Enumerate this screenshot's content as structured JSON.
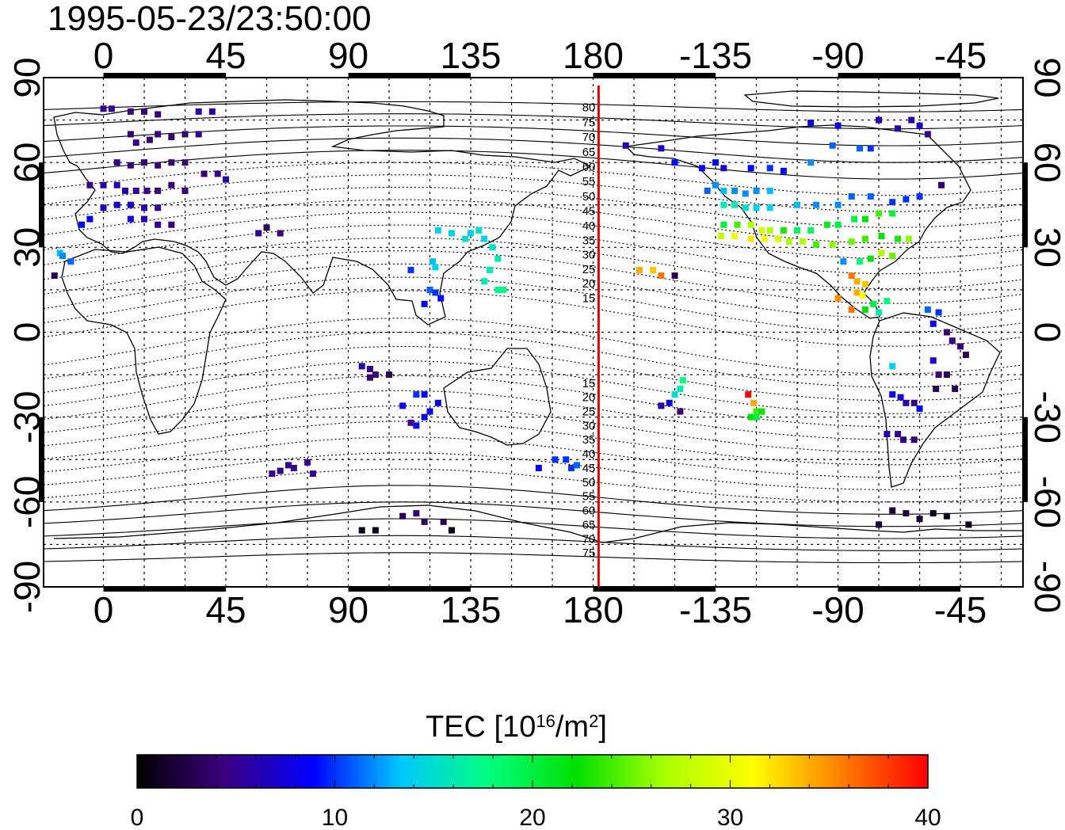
{
  "title": "1995-05-23/23:50:00",
  "colors": {
    "marker_line": "#e00000",
    "colormap": [
      "#000000",
      "#3c0080",
      "#0000ff",
      "#00c8ff",
      "#00ff80",
      "#00e000",
      "#a8ff00",
      "#ffff00",
      "#ff8000",
      "#ff0000"
    ]
  },
  "map": {
    "lon_ticks_top": [
      "0",
      "45",
      "90",
      "135",
      "180",
      "-135",
      "-90",
      "-45"
    ],
    "lon_ticks_bottom": [
      "0",
      "45",
      "90",
      "135",
      "180",
      "-135",
      "-90",
      "-45"
    ],
    "lat_ticks_left": [
      "90",
      "60",
      "30",
      "0",
      "-30",
      "-60",
      "-90"
    ],
    "lat_ticks_right": [
      "90",
      "60",
      "30",
      "0",
      "-30",
      "-60",
      "-90"
    ],
    "lon_range": [
      -22,
      338
    ],
    "lat_range": [
      -90,
      90
    ],
    "marker_longitude": 182,
    "grid": true,
    "magnetic_lat_labels_north": [
      "80",
      "75",
      "70",
      "65",
      "60",
      "55",
      "50",
      "45",
      "40",
      "35",
      "30",
      "25",
      "20",
      "15"
    ],
    "magnetic_lat_labels_south": [
      "15",
      "20",
      "25",
      "30",
      "35",
      "40",
      "45",
      "50",
      "55",
      "60",
      "65",
      "70",
      "75"
    ]
  },
  "colorbar": {
    "title_prefix": "TEC  [10",
    "title_sup1": "16",
    "title_mid": "/m",
    "title_sup2": "2",
    "title_suffix": "]",
    "ticks": [
      "0",
      "10",
      "20",
      "30",
      "40"
    ],
    "range": [
      0,
      40
    ]
  },
  "chart_data": {
    "type": "scatter",
    "title": "1995-05-23/23:50:00",
    "xlabel": "",
    "ylabel": "",
    "colorbar_label": "TEC [10^16/m^2]",
    "xlim": [
      -22,
      338
    ],
    "ylim": [
      -90,
      90
    ],
    "clim": [
      0,
      40
    ],
    "points": [
      [
        0,
        79,
        5
      ],
      [
        3,
        79,
        5
      ],
      [
        10,
        78,
        4
      ],
      [
        15,
        78,
        4
      ],
      [
        20,
        77,
        4
      ],
      [
        35,
        78,
        6
      ],
      [
        40,
        78,
        6
      ],
      [
        10,
        70,
        4
      ],
      [
        12,
        67,
        5
      ],
      [
        17,
        68,
        4
      ],
      [
        20,
        70,
        4
      ],
      [
        25,
        69,
        4
      ],
      [
        30,
        70,
        4
      ],
      [
        35,
        70,
        5
      ],
      [
        5,
        60,
        5
      ],
      [
        10,
        59,
        4
      ],
      [
        15,
        60,
        4
      ],
      [
        20,
        59,
        4
      ],
      [
        25,
        60,
        4
      ],
      [
        30,
        60,
        4
      ],
      [
        37,
        56,
        4
      ],
      [
        42,
        56,
        5
      ],
      [
        45,
        54,
        6
      ],
      [
        -5,
        52,
        5
      ],
      [
        0,
        52,
        6
      ],
      [
        5,
        52,
        6
      ],
      [
        8,
        50,
        6
      ],
      [
        12,
        50,
        5
      ],
      [
        16,
        50,
        5
      ],
      [
        20,
        50,
        4
      ],
      [
        25,
        52,
        4
      ],
      [
        30,
        50,
        4
      ],
      [
        5,
        45,
        7
      ],
      [
        10,
        45,
        7
      ],
      [
        15,
        44,
        6
      ],
      [
        20,
        44,
        5
      ],
      [
        0,
        44,
        7
      ],
      [
        -5,
        40,
        9
      ],
      [
        -8,
        38,
        9
      ],
      [
        10,
        40,
        8
      ],
      [
        15,
        40,
        6
      ],
      [
        20,
        38,
        5
      ],
      [
        25,
        38,
        4
      ],
      [
        -16,
        28,
        13
      ],
      [
        -15,
        27,
        12
      ],
      [
        -12,
        25,
        11
      ],
      [
        -18,
        20,
        3
      ],
      [
        60,
        37,
        3
      ],
      [
        65,
        35,
        4
      ],
      [
        57,
        35,
        5
      ],
      [
        123,
        36,
        14
      ],
      [
        128,
        35,
        14
      ],
      [
        133,
        33,
        15
      ],
      [
        135,
        35,
        14
      ],
      [
        138,
        36,
        15
      ],
      [
        140,
        33,
        14
      ],
      [
        143,
        30,
        15
      ],
      [
        145,
        26,
        16
      ],
      [
        142,
        22,
        16
      ],
      [
        140,
        18,
        16
      ],
      [
        145,
        15,
        17
      ],
      [
        147,
        15,
        18
      ],
      [
        121,
        25,
        13
      ],
      [
        122,
        23,
        14
      ],
      [
        120,
        15,
        11
      ],
      [
        122,
        14,
        10
      ],
      [
        124,
        12,
        9
      ],
      [
        118,
        10,
        9
      ],
      [
        113,
        22,
        10
      ],
      [
        95,
        -12,
        6
      ],
      [
        98,
        -13,
        5
      ],
      [
        100,
        -15,
        4
      ],
      [
        105,
        -15,
        3
      ],
      [
        98,
        -16,
        4
      ],
      [
        115,
        -22,
        10
      ],
      [
        118,
        -22,
        9
      ],
      [
        120,
        -28,
        8
      ],
      [
        123,
        -25,
        8
      ],
      [
        118,
        -30,
        8
      ],
      [
        110,
        -26,
        8
      ],
      [
        115,
        -33,
        9
      ],
      [
        113,
        -32,
        5
      ],
      [
        160,
        -48,
        9
      ],
      [
        166,
        -45,
        10
      ],
      [
        170,
        -45,
        10
      ],
      [
        172,
        -48,
        10
      ],
      [
        174,
        -47,
        11
      ],
      [
        68,
        -47,
        5
      ],
      [
        70,
        -48,
        5
      ],
      [
        75,
        -46,
        5
      ],
      [
        77,
        -50,
        5
      ],
      [
        65,
        -49,
        5
      ],
      [
        62,
        -50,
        5
      ],
      [
        110,
        -65,
        3
      ],
      [
        115,
        -64,
        4
      ],
      [
        118,
        -67,
        3
      ],
      [
        125,
        -67,
        3
      ],
      [
        128,
        -70,
        1
      ],
      [
        100,
        -70,
        1
      ],
      [
        95,
        -70,
        1
      ],
      [
        197,
        22,
        34
      ],
      [
        202,
        22,
        33
      ],
      [
        205,
        20,
        36
      ],
      [
        210,
        20,
        3
      ],
      [
        213,
        -17,
        18
      ],
      [
        212,
        -20,
        16
      ],
      [
        210,
        -22,
        15
      ],
      [
        208,
        -25,
        8
      ],
      [
        205,
        -26,
        6
      ],
      [
        212,
        -28,
        4
      ],
      [
        237,
        -22,
        40
      ],
      [
        239,
        -25,
        34
      ],
      [
        240,
        -28,
        24
      ],
      [
        242,
        -28,
        22
      ],
      [
        238,
        -30,
        22
      ],
      [
        240,
        -30,
        20
      ],
      [
        192,
        66,
        6
      ],
      [
        205,
        65,
        7
      ],
      [
        210,
        60,
        9
      ],
      [
        220,
        58,
        8
      ],
      [
        225,
        60,
        9
      ],
      [
        228,
        58,
        7
      ],
      [
        238,
        58,
        9
      ],
      [
        245,
        58,
        10
      ],
      [
        250,
        57,
        9
      ],
      [
        260,
        60,
        12
      ],
      [
        260,
        74,
        8
      ],
      [
        270,
        73,
        8
      ],
      [
        285,
        75,
        6
      ],
      [
        292,
        72,
        6
      ],
      [
        297,
        75,
        6
      ],
      [
        300,
        73,
        7
      ],
      [
        303,
        70,
        5
      ],
      [
        268,
        66,
        11
      ],
      [
        278,
        65,
        11
      ],
      [
        282,
        65,
        10
      ],
      [
        222,
        50,
        11
      ],
      [
        225,
        52,
        12
      ],
      [
        228,
        50,
        13
      ],
      [
        232,
        50,
        12
      ],
      [
        236,
        49,
        12
      ],
      [
        240,
        50,
        12
      ],
      [
        245,
        50,
        13
      ],
      [
        228,
        45,
        16
      ],
      [
        232,
        45,
        16
      ],
      [
        236,
        44,
        15
      ],
      [
        240,
        44,
        14
      ],
      [
        245,
        44,
        14
      ],
      [
        255,
        45,
        13
      ],
      [
        262,
        45,
        12
      ],
      [
        270,
        45,
        12
      ],
      [
        275,
        48,
        11
      ],
      [
        282,
        48,
        11
      ],
      [
        290,
        46,
        10
      ],
      [
        295,
        47,
        10
      ],
      [
        300,
        48,
        10
      ],
      [
        308,
        52,
        4
      ],
      [
        228,
        38,
        20
      ],
      [
        233,
        38,
        24
      ],
      [
        238,
        38,
        27
      ],
      [
        242,
        36,
        29
      ],
      [
        245,
        36,
        27
      ],
      [
        250,
        36,
        23
      ],
      [
        255,
        36,
        19
      ],
      [
        260,
        36,
        19
      ],
      [
        266,
        38,
        21
      ],
      [
        270,
        38,
        20
      ],
      [
        276,
        40,
        20
      ],
      [
        280,
        40,
        22
      ],
      [
        285,
        42,
        24
      ],
      [
        290,
        42,
        20
      ],
      [
        227,
        34,
        28
      ],
      [
        232,
        34,
        30
      ],
      [
        238,
        33,
        32
      ],
      [
        243,
        33,
        31
      ],
      [
        248,
        33,
        29
      ],
      [
        252,
        32,
        27
      ],
      [
        257,
        32,
        27
      ],
      [
        262,
        31,
        24
      ],
      [
        268,
        31,
        26
      ],
      [
        275,
        32,
        25
      ],
      [
        280,
        33,
        24
      ],
      [
        286,
        34,
        22
      ],
      [
        292,
        33,
        23
      ],
      [
        296,
        33,
        26
      ],
      [
        272,
        25,
        12
      ],
      [
        278,
        25,
        18
      ],
      [
        282,
        26,
        22
      ],
      [
        286,
        28,
        27
      ],
      [
        290,
        27,
        25
      ],
      [
        275,
        20,
        36
      ],
      [
        277,
        18,
        34
      ],
      [
        280,
        17,
        33
      ],
      [
        277,
        14,
        34
      ],
      [
        279,
        13,
        31
      ],
      [
        283,
        10,
        20
      ],
      [
        288,
        11,
        18
      ],
      [
        285,
        7,
        16
      ],
      [
        280,
        8,
        22
      ],
      [
        275,
        8,
        36
      ],
      [
        270,
        12,
        35
      ],
      [
        303,
        8,
        11
      ],
      [
        307,
        7,
        10
      ],
      [
        305,
        3,
        8
      ],
      [
        310,
        0,
        4
      ],
      [
        312,
        -3,
        5
      ],
      [
        315,
        -5,
        4
      ],
      [
        317,
        -8,
        3
      ],
      [
        305,
        -10,
        7
      ],
      [
        307,
        -15,
        4
      ],
      [
        290,
        -12,
        14
      ],
      [
        290,
        -22,
        8
      ],
      [
        293,
        -23,
        7
      ],
      [
        295,
        -25,
        6
      ],
      [
        298,
        -25,
        5
      ],
      [
        300,
        -27,
        9
      ],
      [
        306,
        -20,
        3
      ],
      [
        313,
        -20,
        3
      ],
      [
        310,
        -15,
        3
      ],
      [
        288,
        -36,
        6
      ],
      [
        292,
        -36,
        5
      ],
      [
        294,
        -38,
        5
      ],
      [
        298,
        -38,
        4
      ],
      [
        290,
        -63,
        2
      ],
      [
        295,
        -64,
        2
      ],
      [
        300,
        -66,
        2
      ],
      [
        305,
        -64,
        1
      ],
      [
        310,
        -65,
        1
      ],
      [
        318,
        -68,
        1
      ],
      [
        285,
        -68,
        2
      ]
    ]
  }
}
